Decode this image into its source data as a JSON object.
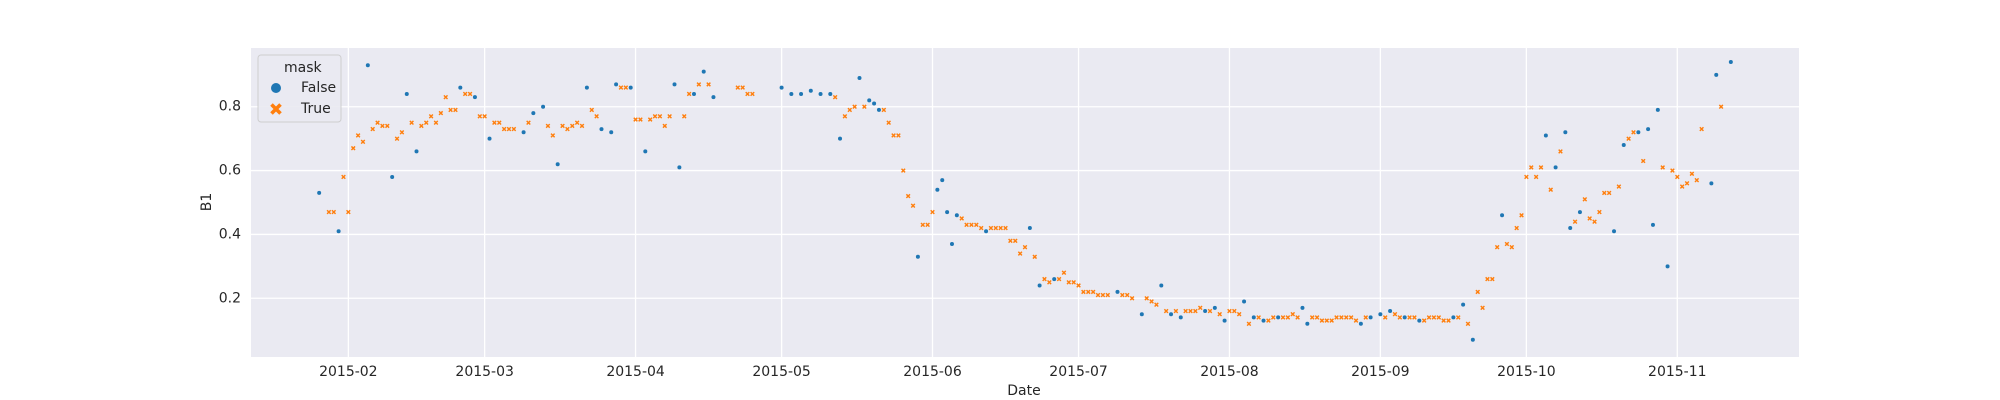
{
  "chart_data": {
    "type": "scatter",
    "x_label": "Date",
    "y_label": "B1",
    "xlim": [
      "2015-01-12",
      "2015-11-26"
    ],
    "xticks": [
      "2015-02",
      "2015-03",
      "2015-04",
      "2015-05",
      "2015-06",
      "2015-07",
      "2015-08",
      "2015-09",
      "2015-10",
      "2015-11"
    ],
    "ylim": [
      0.016,
      0.984
    ],
    "yticks": [
      0.2,
      0.4,
      0.6,
      0.8
    ],
    "grid": true,
    "legend_title": "mask",
    "legend_position": "upper left",
    "series": [
      {
        "name": "False",
        "color": "#1f77b4",
        "marker": "o",
        "x": [
          "2015-01-26",
          "2015-01-30",
          "2015-02-05",
          "2015-02-10",
          "2015-02-13",
          "2015-02-15",
          "2015-02-24",
          "2015-02-27",
          "2015-03-02",
          "2015-03-09",
          "2015-03-11",
          "2015-03-13",
          "2015-03-16",
          "2015-03-22",
          "2015-03-25",
          "2015-03-27",
          "2015-03-28",
          "2015-03-31",
          "2015-04-03",
          "2015-04-09",
          "2015-04-10",
          "2015-04-13",
          "2015-04-15",
          "2015-04-17",
          "2015-05-01",
          "2015-05-03",
          "2015-05-05",
          "2015-05-07",
          "2015-05-09",
          "2015-05-11",
          "2015-05-13",
          "2015-05-17",
          "2015-05-19",
          "2015-05-20",
          "2015-05-21",
          "2015-05-29",
          "2015-06-02",
          "2015-06-03",
          "2015-06-04",
          "2015-06-05",
          "2015-06-06",
          "2015-06-12",
          "2015-06-21",
          "2015-06-23",
          "2015-06-26",
          "2015-07-09",
          "2015-07-14",
          "2015-07-18",
          "2015-07-20",
          "2015-07-22",
          "2015-07-27",
          "2015-07-29",
          "2015-07-31",
          "2015-08-04",
          "2015-08-06",
          "2015-08-08",
          "2015-08-11",
          "2015-08-16",
          "2015-08-17",
          "2015-08-28",
          "2015-08-30",
          "2015-09-01",
          "2015-09-03",
          "2015-09-06",
          "2015-09-09",
          "2015-09-16",
          "2015-09-18",
          "2015-09-20",
          "2015-09-26",
          "2015-10-05",
          "2015-10-07",
          "2015-10-09",
          "2015-10-10",
          "2015-10-12",
          "2015-10-19",
          "2015-10-21",
          "2015-10-24",
          "2015-10-26",
          "2015-10-27",
          "2015-10-28",
          "2015-10-30",
          "2015-11-08",
          "2015-11-09",
          "2015-11-12"
        ],
        "values": [
          0.53,
          0.41,
          0.93,
          0.58,
          0.84,
          0.66,
          0.86,
          0.83,
          0.7,
          0.72,
          0.78,
          0.8,
          0.62,
          0.86,
          0.73,
          0.72,
          0.87,
          0.86,
          0.66,
          0.87,
          0.61,
          0.84,
          0.91,
          0.83,
          0.86,
          0.84,
          0.84,
          0.85,
          0.84,
          0.84,
          0.7,
          0.89,
          0.82,
          0.81,
          0.79,
          0.33,
          0.54,
          0.57,
          0.47,
          0.37,
          0.46,
          0.41,
          0.42,
          0.24,
          0.26,
          0.22,
          0.15,
          0.24,
          0.15,
          0.14,
          0.16,
          0.17,
          0.13,
          0.19,
          0.14,
          0.13,
          0.14,
          0.17,
          0.12,
          0.12,
          0.14,
          0.15,
          0.16,
          0.14,
          0.13,
          0.14,
          0.18,
          0.07,
          0.46,
          0.71,
          0.61,
          0.72,
          0.42,
          0.47,
          0.41,
          0.68,
          0.72,
          0.73,
          0.43,
          0.79,
          0.3,
          0.56,
          0.9,
          0.94
        ]
      },
      {
        "name": "True",
        "color": "#ff7f0e",
        "marker": "x",
        "x": [
          "2015-01-28",
          "2015-01-29",
          "2015-01-31",
          "2015-02-01",
          "2015-02-02",
          "2015-02-03",
          "2015-02-04",
          "2015-02-06",
          "2015-02-07",
          "2015-02-08",
          "2015-02-09",
          "2015-02-11",
          "2015-02-12",
          "2015-02-14",
          "2015-02-16",
          "2015-02-17",
          "2015-02-18",
          "2015-02-19",
          "2015-02-20",
          "2015-02-21",
          "2015-02-22",
          "2015-02-23",
          "2015-02-25",
          "2015-02-26",
          "2015-02-28",
          "2015-03-01",
          "2015-03-03",
          "2015-03-04",
          "2015-03-05",
          "2015-03-06",
          "2015-03-07",
          "2015-03-10",
          "2015-03-14",
          "2015-03-15",
          "2015-03-17",
          "2015-03-18",
          "2015-03-19",
          "2015-03-20",
          "2015-03-21",
          "2015-03-23",
          "2015-03-24",
          "2015-03-29",
          "2015-03-30",
          "2015-04-01",
          "2015-04-02",
          "2015-04-04",
          "2015-04-05",
          "2015-04-06",
          "2015-04-07",
          "2015-04-08",
          "2015-04-11",
          "2015-04-12",
          "2015-04-14",
          "2015-04-16",
          "2015-04-22",
          "2015-04-23",
          "2015-04-24",
          "2015-04-25",
          "2015-05-12",
          "2015-05-14",
          "2015-05-15",
          "2015-05-16",
          "2015-05-18",
          "2015-05-22",
          "2015-05-23",
          "2015-05-24",
          "2015-05-25",
          "2015-05-26",
          "2015-05-27",
          "2015-05-28",
          "2015-05-30",
          "2015-05-31",
          "2015-06-01",
          "2015-06-07",
          "2015-06-08",
          "2015-06-09",
          "2015-06-10",
          "2015-06-11",
          "2015-06-13",
          "2015-06-14",
          "2015-06-15",
          "2015-06-16",
          "2015-06-17",
          "2015-06-18",
          "2015-06-19",
          "2015-06-20",
          "2015-06-22",
          "2015-06-24",
          "2015-06-25",
          "2015-06-27",
          "2015-06-28",
          "2015-06-29",
          "2015-06-30",
          "2015-07-01",
          "2015-07-02",
          "2015-07-03",
          "2015-07-04",
          "2015-07-05",
          "2015-07-06",
          "2015-07-07",
          "2015-07-10",
          "2015-07-11",
          "2015-07-12",
          "2015-07-15",
          "2015-07-16",
          "2015-07-17",
          "2015-07-19",
          "2015-07-21",
          "2015-07-23",
          "2015-07-24",
          "2015-07-25",
          "2015-07-26",
          "2015-07-28",
          "2015-07-30",
          "2015-08-01",
          "2015-08-02",
          "2015-08-03",
          "2015-08-05",
          "2015-08-07",
          "2015-08-09",
          "2015-08-10",
          "2015-08-12",
          "2015-08-13",
          "2015-08-14",
          "2015-08-15",
          "2015-08-18",
          "2015-08-19",
          "2015-08-20",
          "2015-08-21",
          "2015-08-22",
          "2015-08-23",
          "2015-08-24",
          "2015-08-25",
          "2015-08-26",
          "2015-08-27",
          "2015-08-29",
          "2015-09-02",
          "2015-09-04",
          "2015-09-05",
          "2015-09-07",
          "2015-09-08",
          "2015-09-10",
          "2015-09-11",
          "2015-09-12",
          "2015-09-13",
          "2015-09-14",
          "2015-09-15",
          "2015-09-17",
          "2015-09-19",
          "2015-09-21",
          "2015-09-22",
          "2015-09-23",
          "2015-09-24",
          "2015-09-25",
          "2015-09-27",
          "2015-09-28",
          "2015-09-29",
          "2015-09-30",
          "2015-10-01",
          "2015-10-02",
          "2015-10-03",
          "2015-10-04",
          "2015-10-06",
          "2015-10-08",
          "2015-10-11",
          "2015-10-13",
          "2015-10-14",
          "2015-10-15",
          "2015-10-16",
          "2015-10-17",
          "2015-10-18",
          "2015-10-20",
          "2015-10-22",
          "2015-10-23",
          "2015-10-25",
          "2015-10-29",
          "2015-10-31",
          "2015-11-01",
          "2015-11-02",
          "2015-11-03",
          "2015-11-04",
          "2015-11-05",
          "2015-11-06",
          "2015-11-10"
        ],
        "values": [
          0.47,
          0.47,
          0.58,
          0.47,
          0.67,
          0.71,
          0.69,
          0.73,
          0.75,
          0.74,
          0.74,
          0.7,
          0.72,
          0.75,
          0.74,
          0.75,
          0.77,
          0.75,
          0.78,
          0.83,
          0.79,
          0.79,
          0.84,
          0.84,
          0.77,
          0.77,
          0.75,
          0.75,
          0.73,
          0.73,
          0.73,
          0.75,
          0.74,
          0.71,
          0.74,
          0.73,
          0.74,
          0.75,
          0.74,
          0.79,
          0.77,
          0.86,
          0.86,
          0.76,
          0.76,
          0.76,
          0.77,
          0.77,
          0.74,
          0.77,
          0.77,
          0.84,
          0.87,
          0.87,
          0.86,
          0.86,
          0.84,
          0.84,
          0.83,
          0.77,
          0.79,
          0.8,
          0.8,
          0.79,
          0.75,
          0.71,
          0.71,
          0.6,
          0.52,
          0.49,
          0.43,
          0.43,
          0.47,
          0.45,
          0.43,
          0.43,
          0.43,
          0.42,
          0.42,
          0.42,
          0.42,
          0.42,
          0.38,
          0.38,
          0.34,
          0.36,
          0.33,
          0.26,
          0.25,
          0.26,
          0.28,
          0.25,
          0.25,
          0.24,
          0.22,
          0.22,
          0.22,
          0.21,
          0.21,
          0.21,
          0.21,
          0.21,
          0.2,
          0.2,
          0.19,
          0.18,
          0.16,
          0.16,
          0.16,
          0.16,
          0.16,
          0.17,
          0.16,
          0.15,
          0.16,
          0.16,
          0.15,
          0.12,
          0.14,
          0.13,
          0.14,
          0.14,
          0.14,
          0.15,
          0.14,
          0.14,
          0.14,
          0.13,
          0.13,
          0.13,
          0.14,
          0.14,
          0.14,
          0.14,
          0.13,
          0.14,
          0.14,
          0.15,
          0.14,
          0.14,
          0.14,
          0.13,
          0.14,
          0.14,
          0.14,
          0.13,
          0.13,
          0.14,
          0.12,
          0.22,
          0.17,
          0.26,
          0.26,
          0.36,
          0.37,
          0.36,
          0.42,
          0.46,
          0.58,
          0.61,
          0.58,
          0.61,
          0.54,
          0.66,
          0.44,
          0.51,
          0.45,
          0.44,
          0.47,
          0.53,
          0.53,
          0.55,
          0.7,
          0.72,
          0.63,
          0.61,
          0.6,
          0.58,
          0.55,
          0.56,
          0.59,
          0.57,
          0.73,
          0.8
        ]
      }
    ]
  }
}
